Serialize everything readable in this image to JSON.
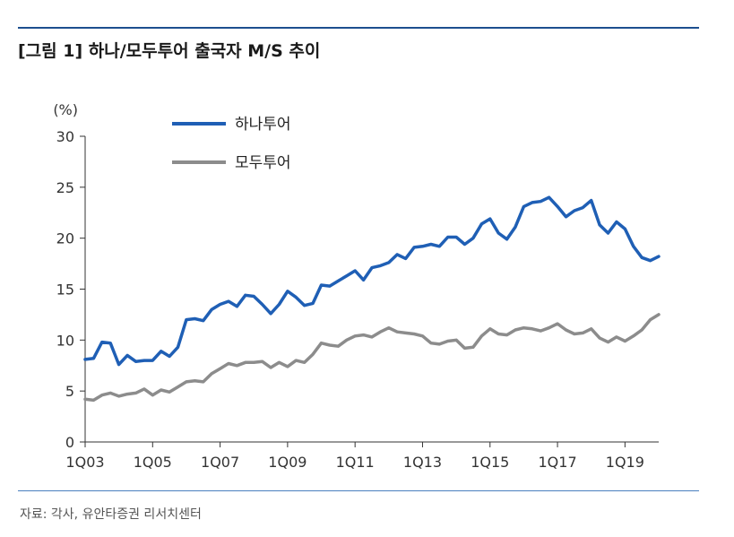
{
  "title": "[그림 1] 하나/모두투어 출국자 M/S 추이",
  "source": "자료: 각사, 유안타증권 리서치센터",
  "chart_data": {
    "type": "line",
    "ylabel": "(%)",
    "ylim": [
      0,
      30
    ],
    "yticks": [
      0,
      5,
      10,
      15,
      20,
      25,
      30
    ],
    "xlim": [
      0,
      68
    ],
    "xticks": [
      {
        "label": "1Q03",
        "index": 0
      },
      {
        "label": "1Q05",
        "index": 8
      },
      {
        "label": "1Q07",
        "index": 16
      },
      {
        "label": "1Q09",
        "index": 24
      },
      {
        "label": "1Q11",
        "index": 32
      },
      {
        "label": "1Q13",
        "index": 40
      },
      {
        "label": "1Q15",
        "index": 48
      },
      {
        "label": "1Q17",
        "index": 56
      },
      {
        "label": "1Q19",
        "index": 64
      }
    ],
    "legend_position": "top-left",
    "series": [
      {
        "name": "하나투어",
        "color": "#1f5fb5",
        "values": [
          8.1,
          8.2,
          9.8,
          9.7,
          7.6,
          8.5,
          7.9,
          8.0,
          8.0,
          8.9,
          8.4,
          9.3,
          12.0,
          12.1,
          11.9,
          13.0,
          13.5,
          13.8,
          13.3,
          14.4,
          14.3,
          13.5,
          12.6,
          13.5,
          14.8,
          14.2,
          13.4,
          13.6,
          15.4,
          15.3,
          15.8,
          16.3,
          16.8,
          15.9,
          17.1,
          17.3,
          17.6,
          18.4,
          18.0,
          19.1,
          19.2,
          19.4,
          19.2,
          20.1,
          20.1,
          19.4,
          20.0,
          21.4,
          21.9,
          20.5,
          19.9,
          21.1,
          23.1,
          23.5,
          23.6,
          24.0,
          23.1,
          22.1,
          22.7,
          23.0,
          23.7,
          21.3,
          20.5,
          21.6,
          20.9,
          19.2,
          18.1,
          17.8,
          18.2
        ]
      },
      {
        "name": "모두투어",
        "color": "#8c8c8c",
        "values": [
          4.2,
          4.1,
          4.6,
          4.8,
          4.5,
          4.7,
          4.8,
          5.2,
          4.6,
          5.1,
          4.9,
          5.4,
          5.9,
          6.0,
          5.9,
          6.7,
          7.2,
          7.7,
          7.5,
          7.8,
          7.8,
          7.9,
          7.3,
          7.8,
          7.4,
          8.0,
          7.8,
          8.6,
          9.7,
          9.5,
          9.4,
          10.0,
          10.4,
          10.5,
          10.3,
          10.8,
          11.2,
          10.8,
          10.7,
          10.6,
          10.4,
          9.7,
          9.6,
          9.9,
          10.0,
          9.2,
          9.3,
          10.4,
          11.1,
          10.6,
          10.5,
          11.0,
          11.2,
          11.1,
          10.9,
          11.2,
          11.6,
          11.0,
          10.6,
          10.7,
          11.1,
          10.2,
          9.8,
          10.3,
          9.9,
          10.4,
          11.0,
          12.0,
          12.5
        ]
      }
    ]
  }
}
